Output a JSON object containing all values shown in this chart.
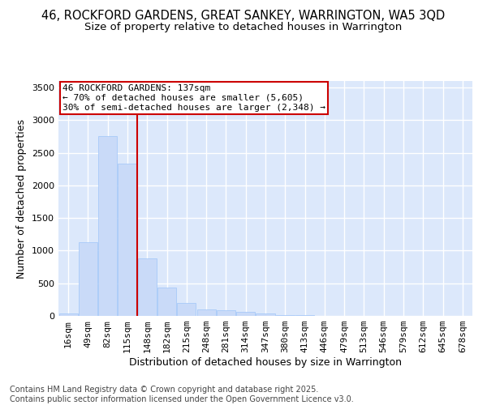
{
  "title_line1": "46, ROCKFORD GARDENS, GREAT SANKEY, WARRINGTON, WA5 3QD",
  "title_line2": "Size of property relative to detached houses in Warrington",
  "xlabel": "Distribution of detached houses by size in Warrington",
  "ylabel": "Number of detached properties",
  "categories": [
    "16sqm",
    "49sqm",
    "82sqm",
    "115sqm",
    "148sqm",
    "182sqm",
    "215sqm",
    "248sqm",
    "281sqm",
    "314sqm",
    "347sqm",
    "380sqm",
    "413sqm",
    "446sqm",
    "479sqm",
    "513sqm",
    "546sqm",
    "579sqm",
    "612sqm",
    "645sqm",
    "678sqm"
  ],
  "values": [
    40,
    1130,
    2760,
    2340,
    880,
    440,
    195,
    105,
    90,
    58,
    35,
    18,
    8,
    5,
    2,
    1,
    1,
    0,
    0,
    0,
    0
  ],
  "bar_color": "#c9daf8",
  "bar_edge_color": "#9fc5f8",
  "fig_background_color": "#ffffff",
  "plot_background_color": "#dce8fb",
  "grid_color": "#ffffff",
  "annotation_text_line1": "46 ROCKFORD GARDENS: 137sqm",
  "annotation_text_line2": "← 70% of detached houses are smaller (5,605)",
  "annotation_text_line3": "30% of semi-detached houses are larger (2,348) →",
  "red_line_color": "#cc0000",
  "annotation_box_edge_color": "#cc0000",
  "red_line_x": 3.5,
  "ylim": [
    0,
    3600
  ],
  "yticks": [
    0,
    500,
    1000,
    1500,
    2000,
    2500,
    3000,
    3500
  ],
  "footer_line1": "Contains HM Land Registry data © Crown copyright and database right 2025.",
  "footer_line2": "Contains public sector information licensed under the Open Government Licence v3.0.",
  "title_fontsize": 10.5,
  "subtitle_fontsize": 9.5,
  "axis_label_fontsize": 9,
  "tick_fontsize": 8,
  "annotation_fontsize": 8,
  "footer_fontsize": 7
}
